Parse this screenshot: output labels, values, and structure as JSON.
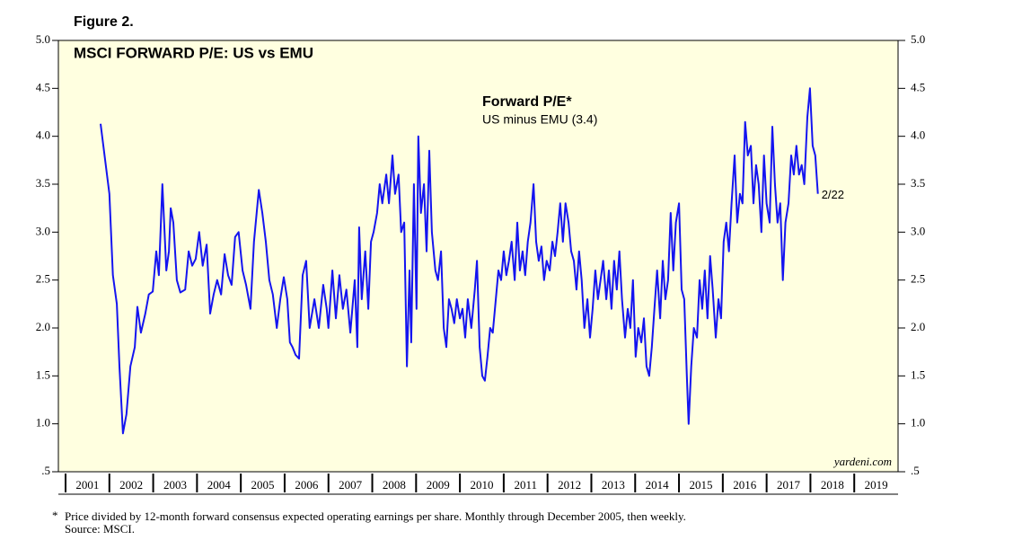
{
  "chart_data": {
    "type": "line",
    "figure_label": "Figure 2.",
    "title": "MSCI FORWARD P/E: US vs EMU",
    "legend_title": "Forward P/E*",
    "legend_subtitle": "US minus EMU (3.4)",
    "end_label": "2/22",
    "watermark": "yardeni.com",
    "footnote_marker": "*",
    "footnote": "Price divided by 12-month forward consensus expected operating earnings per share. Monthly through December 2005, then weekly.",
    "source": "Source: MSCI.",
    "xlim": [
      2001,
      2020
    ],
    "xticks": [
      {
        "value": 2001,
        "label": "2001"
      },
      {
        "value": 2002,
        "label": "2002"
      },
      {
        "value": 2003,
        "label": "2003"
      },
      {
        "value": 2004,
        "label": "2004"
      },
      {
        "value": 2005,
        "label": "2005"
      },
      {
        "value": 2006,
        "label": "2006"
      },
      {
        "value": 2007,
        "label": "2007"
      },
      {
        "value": 2008,
        "label": "2008"
      },
      {
        "value": 2009,
        "label": "2009"
      },
      {
        "value": 2010,
        "label": "2010"
      },
      {
        "value": 2011,
        "label": "2011"
      },
      {
        "value": 2012,
        "label": "2012"
      },
      {
        "value": 2013,
        "label": "2013"
      },
      {
        "value": 2014,
        "label": "2014"
      },
      {
        "value": 2015,
        "label": "2015"
      },
      {
        "value": 2016,
        "label": "2016"
      },
      {
        "value": 2017,
        "label": "2017"
      },
      {
        "value": 2018,
        "label": "2018"
      },
      {
        "value": 2019,
        "label": "2019"
      }
    ],
    "ylim": [
      0.5,
      5
    ],
    "yticks": [
      {
        "value": 0.5,
        "label": ".5"
      },
      {
        "value": 1,
        "label": "1.0"
      },
      {
        "value": 1.5,
        "label": "1.5"
      },
      {
        "value": 2,
        "label": "2.0"
      },
      {
        "value": 2.5,
        "label": "2.5"
      },
      {
        "value": 3,
        "label": "3.0"
      },
      {
        "value": 3.5,
        "label": "3.5"
      },
      {
        "value": 4,
        "label": "4.0"
      },
      {
        "value": 4.5,
        "label": "4.5"
      },
      {
        "value": 5,
        "label": "5.0"
      }
    ],
    "background": "#ffffe0",
    "x": [
      2001.8,
      2002.0,
      2002.08,
      2002.17,
      2002.23,
      2002.31,
      2002.39,
      2002.48,
      2002.58,
      2002.64,
      2002.72,
      2002.82,
      2002.9,
      2002.99,
      2003.07,
      2003.13,
      2003.21,
      2003.3,
      2003.36,
      2003.4,
      2003.46,
      2003.54,
      2003.62,
      2003.73,
      2003.81,
      2003.89,
      2003.97,
      2004.05,
      2004.13,
      2004.22,
      2004.3,
      2004.38,
      2004.46,
      2004.55,
      2004.63,
      2004.71,
      2004.79,
      2004.87,
      2004.95,
      2005.04,
      2005.12,
      2005.22,
      2005.3,
      2005.41,
      2005.49,
      2005.57,
      2005.65,
      2005.73,
      2005.82,
      2005.9,
      2005.98,
      2006.06,
      2006.12,
      2006.18,
      2006.25,
      2006.33,
      2006.41,
      2006.49,
      2006.57,
      2006.68,
      2006.78,
      2006.88,
      2006.96,
      2007.0,
      2007.09,
      2007.17,
      2007.25,
      2007.33,
      2007.41,
      2007.5,
      2007.6,
      2007.66,
      2007.7,
      2007.76,
      2007.84,
      2007.91,
      2007.97,
      2008.03,
      2008.11,
      2008.17,
      2008.23,
      2008.32,
      2008.38,
      2008.46,
      2008.52,
      2008.6,
      2008.66,
      2008.73,
      2008.79,
      2008.85,
      2008.89,
      2008.95,
      2009.01,
      2009.05,
      2009.11,
      2009.18,
      2009.24,
      2009.3,
      2009.36,
      2009.44,
      2009.5,
      2009.57,
      2009.63,
      2009.69,
      2009.75,
      2009.81,
      2009.87,
      2009.93,
      2010.0,
      2010.06,
      2010.12,
      2010.18,
      2010.26,
      2010.34,
      2010.39,
      2010.45,
      2010.51,
      2010.57,
      2010.63,
      2010.69,
      2010.75,
      2010.82,
      2010.88,
      2010.94,
      2011.0,
      2011.06,
      2011.12,
      2011.18,
      2011.25,
      2011.31,
      2011.37,
      2011.43,
      2011.49,
      2011.55,
      2011.61,
      2011.68,
      2011.74,
      2011.8,
      2011.86,
      2011.92,
      2011.98,
      2012.05,
      2012.11,
      2012.17,
      2012.23,
      2012.29,
      2012.35,
      2012.41,
      2012.48,
      2012.54,
      2012.6,
      2012.66,
      2012.72,
      2012.78,
      2012.84,
      2012.91,
      2012.97,
      2013.03,
      2013.09,
      2013.15,
      2013.21,
      2013.27,
      2013.34,
      2013.4,
      2013.46,
      2013.52,
      2013.58,
      2013.64,
      2013.7,
      2013.77,
      2013.83,
      2013.89,
      2013.95,
      2014.01,
      2014.07,
      2014.14,
      2014.2,
      2014.26,
      2014.32,
      2014.38,
      2014.44,
      2014.5,
      2014.57,
      2014.63,
      2014.69,
      2014.75,
      2014.81,
      2014.87,
      2014.93,
      2015.0,
      2015.06,
      2015.12,
      2015.18,
      2015.22,
      2015.28,
      2015.34,
      2015.41,
      2015.47,
      2015.53,
      2015.59,
      2015.65,
      2015.71,
      2015.77,
      2015.84,
      2015.9,
      2015.96,
      2016.02,
      2016.08,
      2016.14,
      2016.2,
      2016.27,
      2016.33,
      2016.39,
      2016.45,
      2016.51,
      2016.57,
      2016.64,
      2016.7,
      2016.76,
      2016.82,
      2016.88,
      2016.94,
      2017.0,
      2017.07,
      2017.13,
      2017.19,
      2017.25,
      2017.31,
      2017.37,
      2017.43,
      2017.5,
      2017.56,
      2017.62,
      2017.68,
      2017.74,
      2017.8,
      2017.86,
      2017.93,
      2017.99,
      2018.05,
      2018.11,
      2018.17
    ],
    "series": [
      {
        "name": "US minus EMU",
        "color": "#1414f0",
        "values": [
          4.13,
          3.4,
          2.55,
          2.25,
          1.6,
          0.9,
          1.1,
          1.6,
          1.8,
          2.22,
          1.95,
          2.15,
          2.35,
          2.38,
          2.8,
          2.55,
          3.5,
          2.6,
          2.8,
          3.25,
          3.1,
          2.5,
          2.37,
          2.4,
          2.8,
          2.65,
          2.72,
          3.0,
          2.65,
          2.87,
          2.15,
          2.35,
          2.5,
          2.35,
          2.77,
          2.55,
          2.45,
          2.95,
          3.0,
          2.6,
          2.45,
          2.2,
          2.9,
          3.44,
          3.2,
          2.9,
          2.5,
          2.35,
          2.0,
          2.3,
          2.53,
          2.3,
          1.85,
          1.8,
          1.72,
          1.68,
          2.55,
          2.7,
          2.0,
          2.3,
          2.0,
          2.45,
          2.2,
          2.0,
          2.6,
          2.1,
          2.55,
          2.2,
          2.4,
          1.95,
          2.5,
          1.8,
          3.05,
          2.3,
          2.8,
          2.2,
          2.9,
          3.0,
          3.2,
          3.5,
          3.3,
          3.6,
          3.3,
          3.8,
          3.4,
          3.6,
          3.0,
          3.1,
          1.6,
          2.6,
          1.85,
          3.5,
          2.2,
          4.0,
          3.2,
          3.5,
          2.8,
          3.85,
          3.0,
          2.6,
          2.5,
          2.8,
          2.0,
          1.8,
          2.3,
          2.2,
          2.05,
          2.3,
          2.1,
          2.2,
          1.9,
          2.3,
          2.0,
          2.4,
          2.7,
          1.8,
          1.5,
          1.45,
          1.7,
          2.0,
          1.95,
          2.3,
          2.6,
          2.5,
          2.8,
          2.55,
          2.7,
          2.9,
          2.5,
          3.1,
          2.6,
          2.8,
          2.55,
          2.9,
          3.1,
          3.5,
          2.9,
          2.7,
          2.85,
          2.5,
          2.7,
          2.6,
          2.9,
          2.75,
          3.0,
          3.3,
          2.9,
          3.3,
          3.1,
          2.8,
          2.7,
          2.4,
          2.8,
          2.5,
          2.0,
          2.3,
          1.9,
          2.2,
          2.6,
          2.3,
          2.5,
          2.7,
          2.3,
          2.6,
          2.2,
          2.7,
          2.4,
          2.8,
          2.3,
          1.9,
          2.2,
          2.0,
          2.5,
          1.7,
          2.0,
          1.85,
          2.1,
          1.6,
          1.5,
          1.8,
          2.2,
          2.6,
          2.1,
          2.7,
          2.3,
          2.5,
          3.2,
          2.6,
          3.1,
          3.3,
          2.4,
          2.3,
          1.5,
          1.0,
          1.6,
          2.0,
          1.9,
          2.5,
          2.2,
          2.6,
          2.1,
          2.75,
          2.4,
          1.9,
          2.3,
          2.1,
          2.9,
          3.1,
          2.8,
          3.3,
          3.8,
          3.1,
          3.4,
          3.3,
          4.15,
          3.8,
          3.9,
          3.3,
          3.7,
          3.5,
          3.0,
          3.8,
          3.3,
          3.1,
          4.1,
          3.5,
          3.1,
          3.3,
          2.5,
          3.1,
          3.3,
          3.8,
          3.6,
          3.9,
          3.6,
          3.7,
          3.5,
          4.2,
          4.5,
          3.9,
          3.8,
          3.4
        ]
      }
    ]
  }
}
